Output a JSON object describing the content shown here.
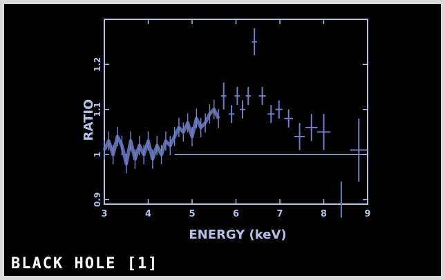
{
  "caption": "BLACK HOLE [1]",
  "colors": {
    "background": "#000000",
    "axes": "#b5c0e8",
    "data": "#6f80c8",
    "page": "#d9d9d9"
  },
  "chart_data": {
    "type": "scatter",
    "title": "",
    "xlabel": "ENERGY (keV)",
    "ylabel": "RATIO",
    "xlim": [
      3,
      9
    ],
    "ylim": [
      0.89,
      1.3
    ],
    "xticks": [
      "3",
      "4",
      "5",
      "6",
      "7",
      "8",
      "9"
    ],
    "yticks": [
      "0.9",
      "1",
      "1.1",
      "1.2"
    ],
    "reference_line": {
      "y": 1.0,
      "x_from": 4.6,
      "x_to": 9.0
    },
    "dense_series": [
      {
        "x": 3.0,
        "y": 1.01
      },
      {
        "x": 3.1,
        "y": 1.03
      },
      {
        "x": 3.2,
        "y": 1.0
      },
      {
        "x": 3.3,
        "y": 1.04
      },
      {
        "x": 3.4,
        "y": 1.02
      },
      {
        "x": 3.5,
        "y": 0.98
      },
      {
        "x": 3.6,
        "y": 1.03
      },
      {
        "x": 3.7,
        "y": 0.99
      },
      {
        "x": 3.8,
        "y": 1.02
      },
      {
        "x": 3.9,
        "y": 1.0
      },
      {
        "x": 4.0,
        "y": 1.03
      },
      {
        "x": 4.1,
        "y": 0.99
      },
      {
        "x": 4.2,
        "y": 1.02
      },
      {
        "x": 4.3,
        "y": 1.0
      },
      {
        "x": 4.4,
        "y": 1.03
      },
      {
        "x": 4.5,
        "y": 1.02
      },
      {
        "x": 4.6,
        "y": 1.04
      },
      {
        "x": 4.7,
        "y": 1.06
      },
      {
        "x": 4.8,
        "y": 1.05
      },
      {
        "x": 4.9,
        "y": 1.07
      },
      {
        "x": 5.0,
        "y": 1.04
      },
      {
        "x": 5.1,
        "y": 1.08
      },
      {
        "x": 5.2,
        "y": 1.06
      },
      {
        "x": 5.3,
        "y": 1.07
      },
      {
        "x": 5.4,
        "y": 1.09
      },
      {
        "x": 5.5,
        "y": 1.1
      },
      {
        "x": 5.6,
        "y": 1.08
      }
    ],
    "points": [
      {
        "x": 5.72,
        "y": 1.13,
        "ex": 0.06,
        "ey": 0.03
      },
      {
        "x": 5.9,
        "y": 1.09,
        "ex": 0.06,
        "ey": 0.02
      },
      {
        "x": 6.03,
        "y": 1.13,
        "ex": 0.06,
        "ey": 0.02
      },
      {
        "x": 6.15,
        "y": 1.1,
        "ex": 0.06,
        "ey": 0.02
      },
      {
        "x": 6.28,
        "y": 1.13,
        "ex": 0.06,
        "ey": 0.02
      },
      {
        "x": 6.42,
        "y": 1.25,
        "ex": 0.06,
        "ey": 0.03
      },
      {
        "x": 6.6,
        "y": 1.13,
        "ex": 0.08,
        "ey": 0.02
      },
      {
        "x": 6.8,
        "y": 1.09,
        "ex": 0.08,
        "ey": 0.02
      },
      {
        "x": 6.98,
        "y": 1.1,
        "ex": 0.08,
        "ey": 0.02
      },
      {
        "x": 7.2,
        "y": 1.08,
        "ex": 0.1,
        "ey": 0.02
      },
      {
        "x": 7.45,
        "y": 1.04,
        "ex": 0.12,
        "ey": 0.03
      },
      {
        "x": 7.72,
        "y": 1.06,
        "ex": 0.14,
        "ey": 0.03
      },
      {
        "x": 8.0,
        "y": 1.05,
        "ex": 0.15,
        "ey": 0.04
      },
      {
        "x": 8.4,
        "y": 0.9,
        "ex": 0.0,
        "ey": 0.04
      },
      {
        "x": 8.8,
        "y": 1.01,
        "ex": 0.2,
        "ey": 0.07
      }
    ]
  }
}
